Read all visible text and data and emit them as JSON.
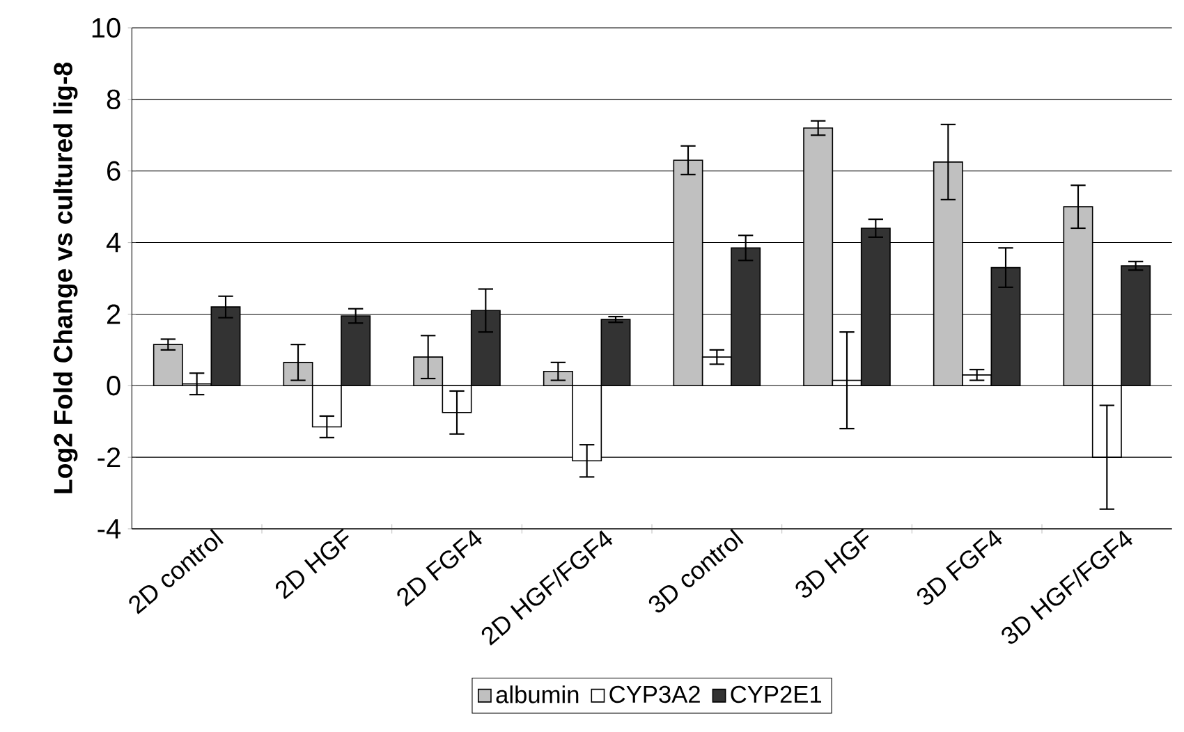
{
  "chart_data": {
    "type": "bar",
    "ylabel": "Log2 Fold Change vs cultured lig-8",
    "categories": [
      "2D control",
      "2D HGF",
      "2D FGF4",
      "2D HGF/FGF4",
      "3D control",
      "3D HGF",
      "3D FGF4",
      "3D HGF/FGF4"
    ],
    "series": [
      {
        "name": "albumin",
        "color": "#c0c0c0",
        "values": [
          1.15,
          0.65,
          0.8,
          0.4,
          6.3,
          7.2,
          6.25,
          5.0
        ],
        "errors": [
          0.15,
          0.5,
          0.6,
          0.25,
          0.4,
          0.2,
          1.05,
          0.6
        ]
      },
      {
        "name": "CYP3A2",
        "color": "#ffffff",
        "values": [
          0.05,
          -1.15,
          -0.75,
          -2.1,
          0.8,
          0.15,
          0.3,
          -2.0
        ],
        "errors": [
          0.3,
          0.3,
          0.6,
          0.45,
          0.2,
          1.35,
          0.15,
          1.45
        ]
      },
      {
        "name": "CYP2E1",
        "color": "#333333",
        "values": [
          2.2,
          1.95,
          2.1,
          1.85,
          3.85,
          4.4,
          3.3,
          3.35
        ],
        "errors": [
          0.3,
          0.2,
          0.6,
          0.08,
          0.35,
          0.25,
          0.55,
          0.12
        ]
      }
    ],
    "ylim": [
      -4,
      10
    ],
    "yticks": [
      -4,
      -2,
      0,
      2,
      4,
      6,
      8,
      10
    ],
    "grid": "y",
    "legend": "bottom"
  }
}
